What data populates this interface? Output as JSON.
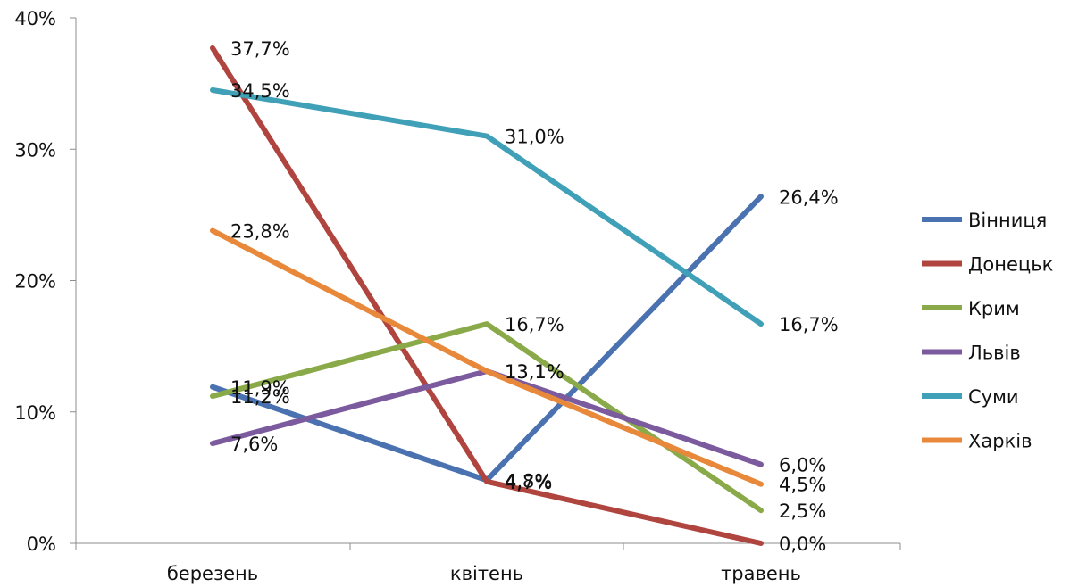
{
  "chart_data": {
    "type": "line",
    "categories": [
      "березень",
      "квітень",
      "травень"
    ],
    "ylim": [
      0,
      40
    ],
    "yticks": [
      0,
      10,
      20,
      30,
      40
    ],
    "ytick_labels": [
      "0%",
      "10%",
      "20%",
      "30%",
      "40%"
    ],
    "grid": false,
    "legend_position": "right",
    "series": [
      {
        "name": "Вінниця",
        "color": "#4a72b0",
        "values": [
          11.9,
          4.8,
          26.4
        ],
        "labels": [
          "11,9%",
          "4,8%",
          "26,4%"
        ]
      },
      {
        "name": "Донецьк",
        "color": "#b0453f",
        "values": [
          37.7,
          4.7,
          0.0
        ],
        "labels": [
          "37,7%",
          "4,7%",
          "0,0%"
        ]
      },
      {
        "name": "Крим",
        "color": "#8aaa4a",
        "values": [
          11.2,
          16.7,
          2.5
        ],
        "labels": [
          "11,2%",
          "16,7%",
          "2,5%"
        ]
      },
      {
        "name": "Львів",
        "color": "#7b5a9e",
        "values": [
          7.6,
          13.1,
          6.0
        ],
        "labels": [
          "7,6%",
          "13,1%",
          "6,0%"
        ]
      },
      {
        "name": "Суми",
        "color": "#3fa0b8",
        "values": [
          34.5,
          31.0,
          16.7
        ],
        "labels": [
          "34,5%",
          "31,0%",
          "16,7%"
        ]
      },
      {
        "name": "Харків",
        "color": "#e8883a",
        "values": [
          23.8,
          13.1,
          4.5
        ],
        "labels": [
          "23,8%",
          "13,1%",
          "4,5%"
        ]
      }
    ]
  }
}
